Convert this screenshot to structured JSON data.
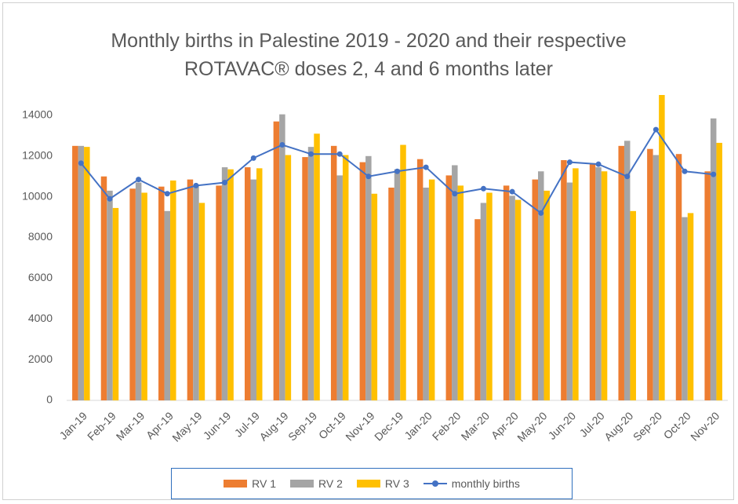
{
  "chart_data": {
    "type": "bar",
    "title": "Monthly births in Palestine 2019 - 2020 and their respective ROTAVAC® doses 2, 4 and 6 months later",
    "categories": [
      "Jan-19",
      "Feb-19",
      "Mar-19",
      "Apr-19",
      "May-19",
      "Jun-19",
      "Jul-19",
      "Aug-19",
      "Sep-19",
      "Oct-19",
      "Nov-19",
      "Dec-19",
      "Jan-20",
      "Feb-20",
      "Mar-20",
      "Apr-20",
      "May-20",
      "Jun-20",
      "Jul-20",
      "Aug-20",
      "Sep-20",
      "Oct-20",
      "Nov-20"
    ],
    "series": [
      {
        "name": "RV 1",
        "color": "#ED7D31",
        "values": [
          12500,
          11000,
          10400,
          10500,
          10850,
          10550,
          11450,
          13700,
          11950,
          12500,
          11700,
          10450,
          11850,
          11050,
          8900,
          10550,
          10850,
          11800,
          11650,
          12500,
          12350,
          12100,
          11250
        ]
      },
      {
        "name": "RV 2",
        "color": "#A5A5A5",
        "values": [
          12500,
          10300,
          10700,
          9300,
          10550,
          11450,
          10850,
          14050,
          12450,
          11050,
          12000,
          11350,
          10450,
          11550,
          9700,
          10050,
          11250,
          10700,
          11450,
          12750,
          12050,
          9000,
          13850
        ]
      },
      {
        "name": "RV 3",
        "color": "#FFC000",
        "values": [
          12450,
          9450,
          10200,
          10800,
          9700,
          11350,
          11400,
          12050,
          13100,
          12050,
          10150,
          12550,
          10850,
          10550,
          10200,
          9850,
          10300,
          11400,
          11250,
          9300,
          15000,
          9200,
          12650
        ]
      },
      {
        "name": "monthly births",
        "color": "#4472C4",
        "type": "line",
        "values": [
          11650,
          9900,
          10850,
          10150,
          10550,
          10700,
          11900,
          12550,
          12100,
          12100,
          11000,
          11250,
          11450,
          10150,
          10400,
          10250,
          9200,
          11700,
          11600,
          11000,
          13300,
          11250,
          11100
        ]
      }
    ],
    "ylim": [
      0,
      15000
    ],
    "yticks": [
      0,
      2000,
      4000,
      6000,
      8000,
      10000,
      12000,
      14000
    ],
    "grid": false
  }
}
